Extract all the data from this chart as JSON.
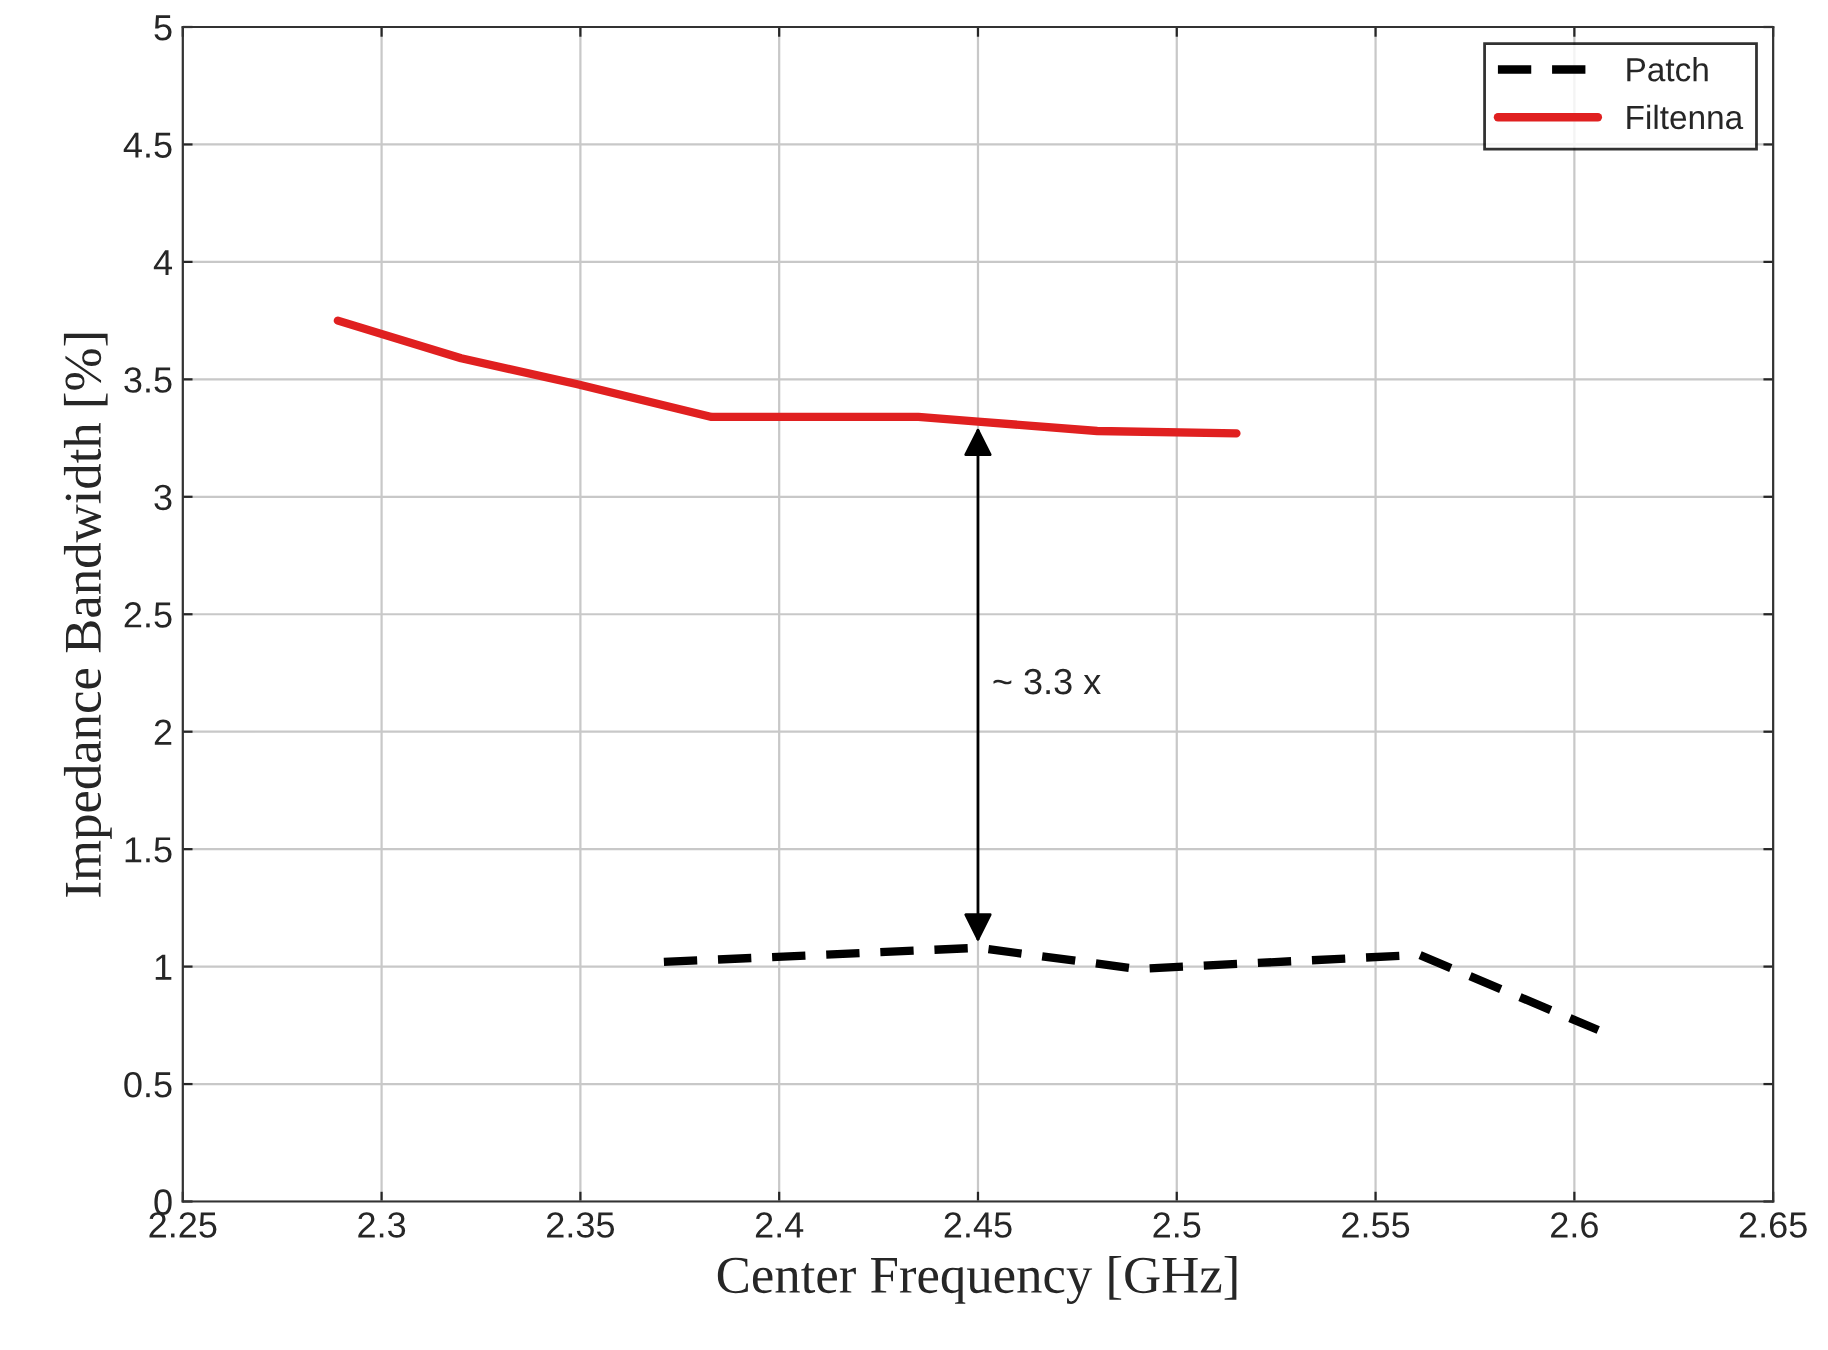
{
  "chart_data": {
    "type": "line",
    "xlabel": "Center Frequency [GHz]",
    "ylabel": "Impedance Bandwidth [%]",
    "series": [
      {
        "name": "Patch",
        "color": "#000000",
        "line_style": "dashed",
        "x": [
          2.371,
          2.45,
          2.49,
          2.561,
          2.606
        ],
        "values": [
          1.02,
          1.08,
          0.99,
          1.05,
          0.73
        ]
      },
      {
        "name": "Filtenna",
        "color": "#e02020",
        "line_style": "solid",
        "x": [
          2.289,
          2.32,
          2.349,
          2.383,
          2.435,
          2.45,
          2.48,
          2.515
        ],
        "values": [
          3.75,
          3.59,
          3.48,
          3.34,
          3.34,
          3.32,
          3.28,
          3.27
        ]
      }
    ],
    "annotations": [
      "~ 3.3 x"
    ],
    "xlim": [
      2.25,
      2.65
    ],
    "xticks": [
      2.25,
      2.3,
      2.35,
      2.4,
      2.45,
      2.5,
      2.55,
      2.6,
      2.65
    ],
    "ylim": [
      0,
      5
    ],
    "yticks": [
      0,
      0.5,
      1,
      1.5,
      2,
      2.5,
      3,
      3.5,
      4,
      4.5,
      5
    ],
    "grid": true,
    "legend": "top right"
  }
}
